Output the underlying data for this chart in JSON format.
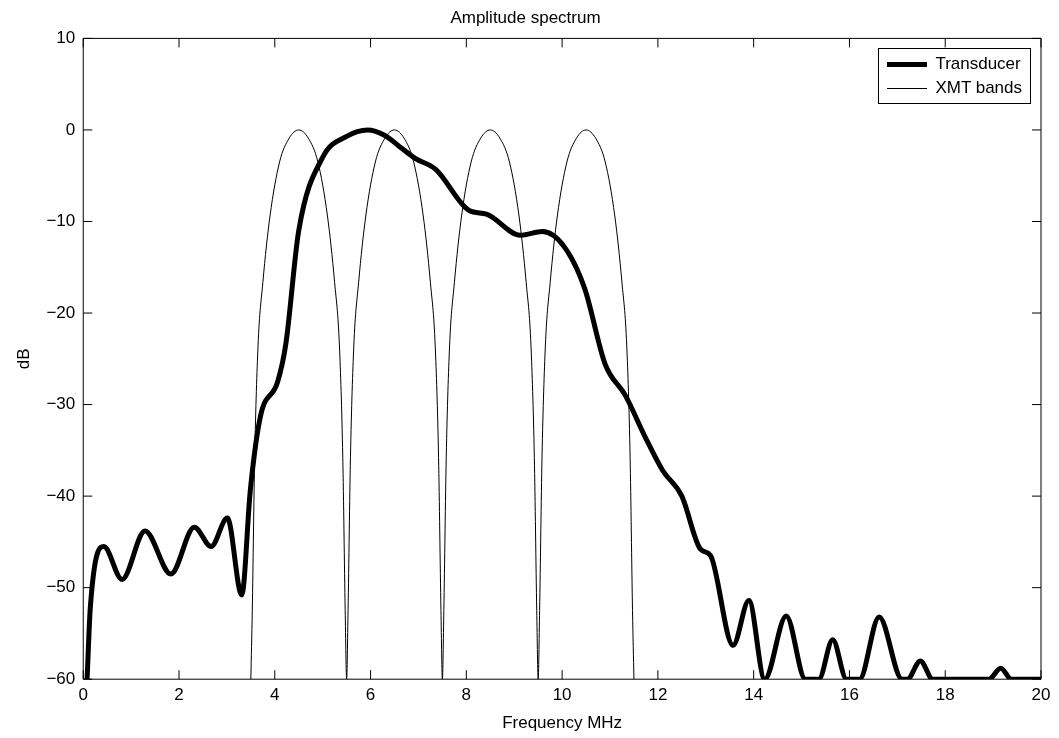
{
  "chart_data": {
    "type": "line",
    "title": "Amplitude spectrum",
    "xlabel": "Frequency MHz",
    "ylabel": "dB",
    "xlim": [
      0,
      20
    ],
    "ylim": [
      -60,
      10
    ],
    "xticks": [
      0,
      2,
      4,
      6,
      8,
      10,
      12,
      14,
      16,
      18,
      20
    ],
    "yticks": [
      -60,
      -50,
      -40,
      -30,
      -20,
      -10,
      0,
      10
    ],
    "grid": false,
    "legend": "top right",
    "marker": "none",
    "line_style": "solid",
    "series": [
      {
        "name": "Transducer",
        "color": "#000000",
        "x": [
          0.08,
          0.15,
          0.43,
          0.81,
          1.29,
          1.83,
          2.32,
          2.67,
          3.01,
          3.31,
          3.49,
          3.7,
          4.06,
          4.23,
          4.5,
          5.0,
          5.5,
          5.94,
          6.3,
          6.6,
          6.93,
          7.36,
          8.06,
          8.42,
          9.13,
          9.59,
          10.05,
          10.47,
          10.9,
          11.32,
          11.74,
          12.1,
          12.5,
          12.89,
          13.1,
          13.57,
          13.9,
          14.23,
          14.68,
          15.08,
          15.36,
          15.65,
          15.94,
          16.21,
          16.62,
          17.1,
          17.21,
          17.48,
          17.74,
          18.91,
          19.16,
          19.38,
          20
        ],
        "values": [
          -60,
          -52,
          -45.5,
          -49.1,
          -43.8,
          -48.5,
          -43.4,
          -45.5,
          -42.4,
          -50.8,
          -39.3,
          -31.3,
          -27.5,
          -23.4,
          -11,
          -3,
          -0.7,
          0,
          -0.6,
          -1.8,
          -3.1,
          -4.3,
          -8.8,
          -9.2,
          -11.5,
          -11.1,
          -12.8,
          -17.3,
          -25.6,
          -29,
          -33.6,
          -37.2,
          -40,
          -45.8,
          -46.5,
          -56.3,
          -51.4,
          -60,
          -53.1,
          -60,
          -60,
          -55.7,
          -60,
          -60,
          -53.2,
          -60,
          -60,
          -58,
          -60,
          -60,
          -58.8,
          -60,
          -60
        ]
      },
      {
        "name": "XMT bands",
        "color": "#000000",
        "x": [
          3.5,
          3.53,
          3.58,
          3.65,
          3.75,
          3.9,
          4.1,
          4.3,
          4.5,
          4.7,
          4.9,
          5.1,
          5.25,
          5.35,
          5.42,
          5.47,
          5.5,
          5.53,
          5.58,
          5.65,
          5.75,
          5.9,
          6.1,
          6.3,
          6.5,
          6.7,
          6.9,
          7.1,
          7.25,
          7.35,
          7.42,
          7.47,
          7.5,
          7.53,
          7.58,
          7.65,
          7.75,
          7.9,
          8.1,
          8.3,
          8.5,
          8.7,
          8.9,
          9.1,
          9.25,
          9.35,
          9.42,
          9.47,
          9.5,
          9.53,
          9.58,
          9.65,
          9.75,
          9.9,
          10.1,
          10.3,
          10.5,
          10.7,
          10.9,
          11.1,
          11.25,
          11.35,
          11.42,
          11.47,
          11.5
        ],
        "values": [
          -60,
          -52.5,
          -35.8,
          -23.6,
          -16.7,
          -9.4,
          -3.5,
          -0.9,
          0,
          -0.9,
          -3.5,
          -9.4,
          -16.7,
          -23.6,
          -35.8,
          -52.5,
          -60,
          -52.5,
          -35.8,
          -23.6,
          -16.7,
          -9.4,
          -3.5,
          -0.9,
          0,
          -0.9,
          -3.5,
          -9.4,
          -16.7,
          -23.6,
          -35.8,
          -52.5,
          -60,
          -52.5,
          -35.8,
          -23.6,
          -16.7,
          -9.4,
          -3.5,
          -0.9,
          0,
          -0.9,
          -3.5,
          -9.4,
          -16.7,
          -23.6,
          -35.8,
          -52.5,
          -60,
          -52.5,
          -35.8,
          -23.6,
          -16.7,
          -9.4,
          -3.5,
          -0.9,
          0,
          -0.9,
          -3.5,
          -9.4,
          -16.7,
          -23.6,
          -35.8,
          -52.5,
          -60
        ]
      }
    ]
  }
}
